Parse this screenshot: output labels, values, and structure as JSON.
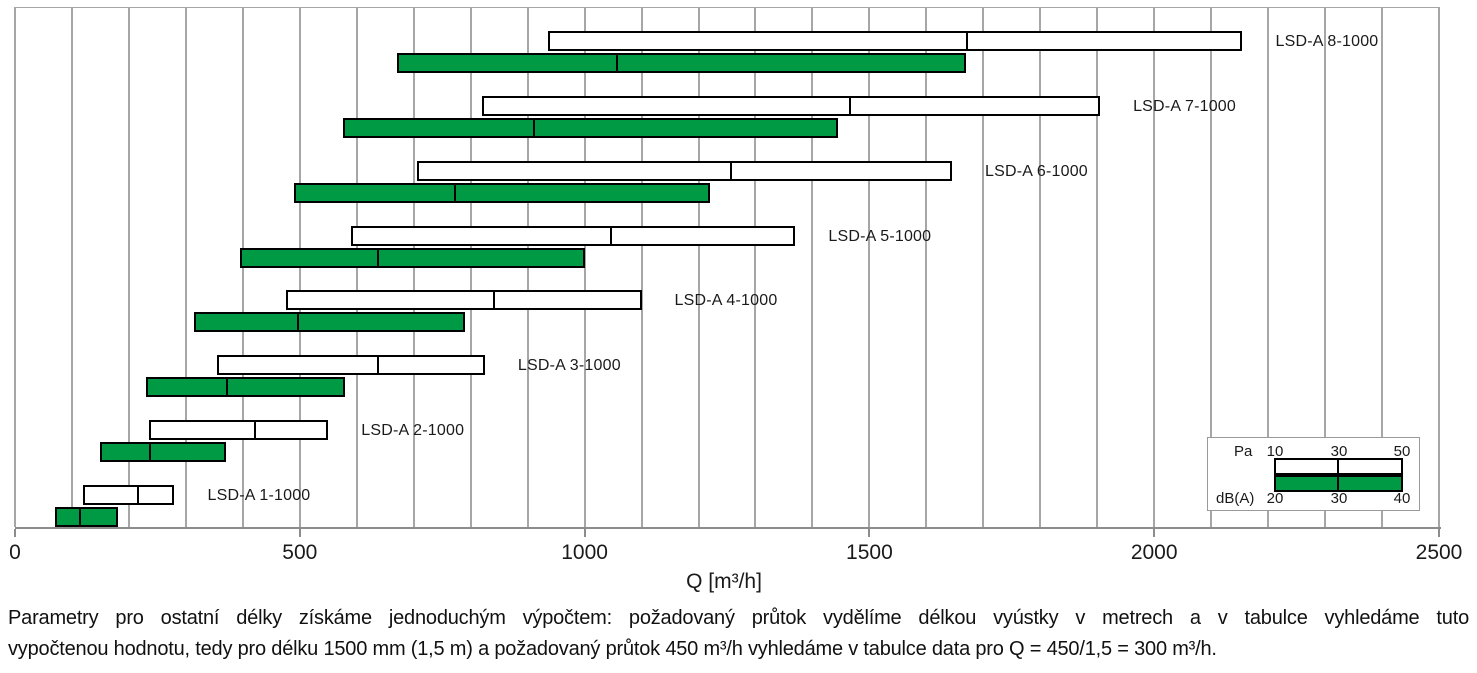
{
  "chart_data": {
    "type": "bar",
    "orientation": "horizontal-range",
    "title": "",
    "xlabel": "Q [m³/h]",
    "xlim": [
      0,
      2500
    ],
    "x_ticks": [
      0,
      500,
      1000,
      1500,
      2000,
      2500
    ],
    "grid_step": 100,
    "grid": true,
    "legend_position": "bottom-right",
    "colors": {
      "pa_bar": "#ffffff",
      "db_bar": "#009a44",
      "bar_border": "#000000",
      "grid": "#a6a6a6"
    },
    "series_meta": {
      "pa": {
        "label": "Pa",
        "ticks": [
          "10",
          "30",
          "50"
        ]
      },
      "db": {
        "label": "dB(A)",
        "ticks": [
          "20",
          "30",
          "40"
        ]
      }
    },
    "rows": [
      {
        "label": "LSD-A 8-1000",
        "pa_q": [
          935,
          1670,
          2155
        ],
        "db_q": [
          670,
          1055,
          1670
        ]
      },
      {
        "label": "LSD-A 7-1000",
        "pa_q": [
          820,
          1465,
          1905
        ],
        "db_q": [
          575,
          910,
          1445
        ]
      },
      {
        "label": "LSD-A 6-1000",
        "pa_q": [
          705,
          1255,
          1645
        ],
        "db_q": [
          490,
          770,
          1220
        ]
      },
      {
        "label": "LSD-A 5-1000",
        "pa_q": [
          590,
          1045,
          1370
        ],
        "db_q": [
          395,
          635,
          1000
        ]
      },
      {
        "label": "LSD-A 4-1000",
        "pa_q": [
          475,
          840,
          1100
        ],
        "db_q": [
          315,
          495,
          790
        ]
      },
      {
        "label": "LSD-A 3-1000",
        "pa_q": [
          355,
          635,
          825
        ],
        "db_q": [
          230,
          370,
          580
        ]
      },
      {
        "label": "LSD-A 2-1000",
        "pa_q": [
          235,
          420,
          550
        ],
        "db_q": [
          150,
          235,
          370
        ]
      },
      {
        "label": "LSD-A 1-1000",
        "pa_q": [
          120,
          215,
          280
        ],
        "db_q": [
          70,
          112,
          180
        ]
      }
    ]
  },
  "footer": {
    "line1": "Parametry pro  ostatní délky získáme jednoduchým výpočtem: požadovaný průtok vydělíme délkou vyústky v metrech a v tabulce vyhledáme tuto",
    "line2": "vypočtenou hodnotu, tedy pro délku 1500 mm (1,5 m) a požadovaný průtok 450 m³/h vyhledáme v tabulce data pro Q = 450/1,5 = 300 m³/h."
  }
}
